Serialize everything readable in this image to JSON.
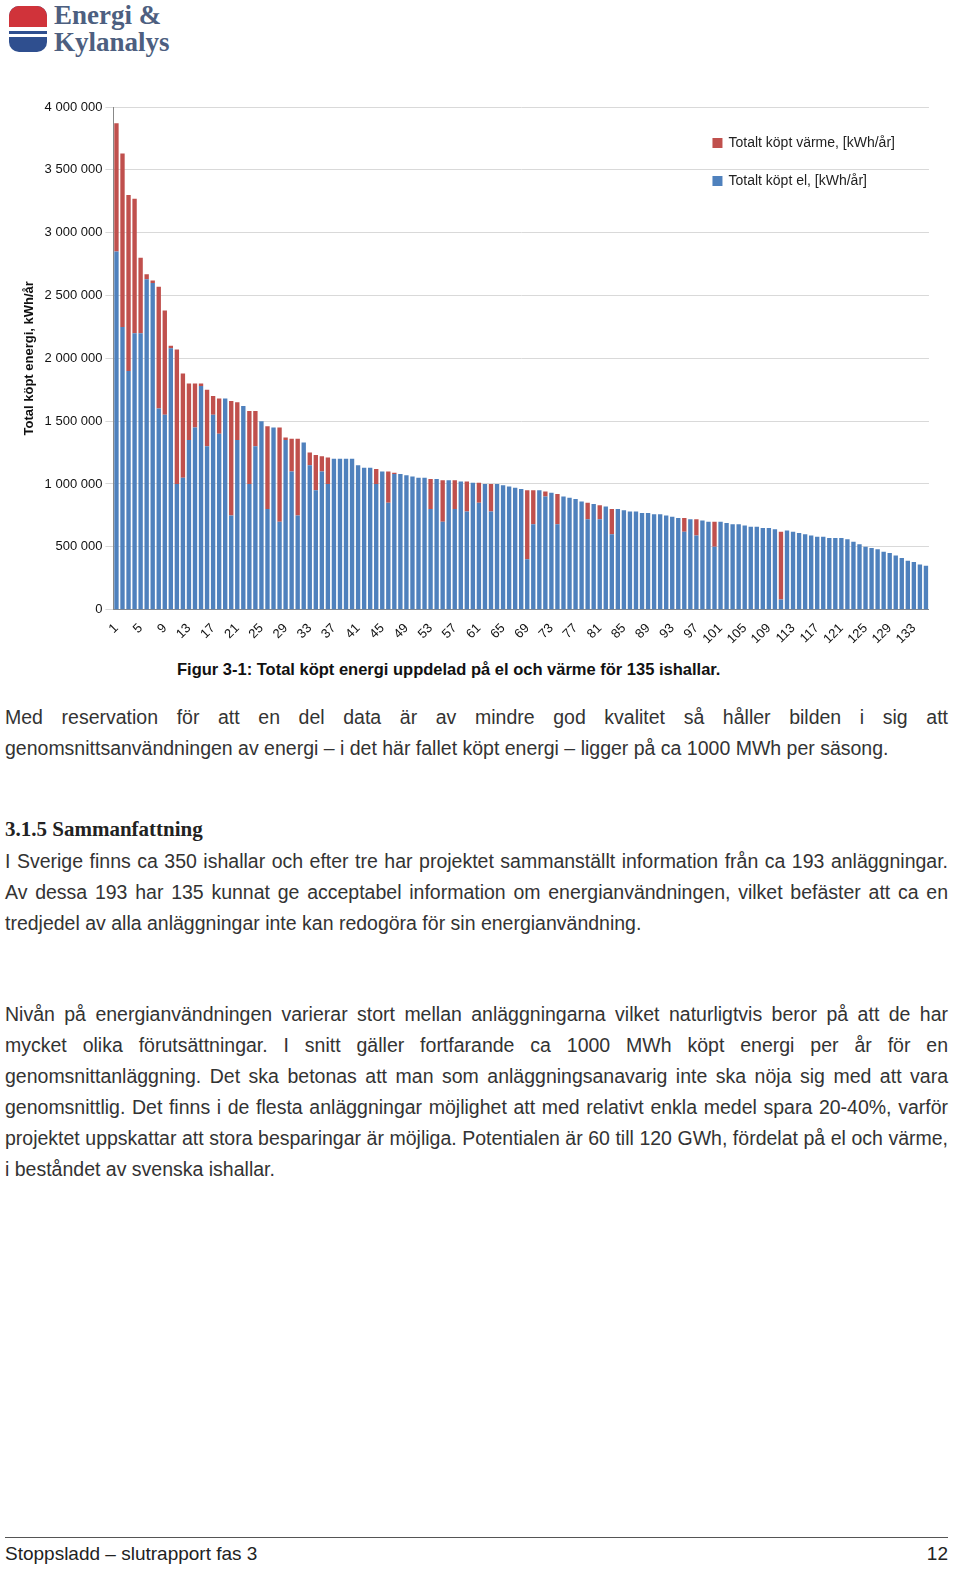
{
  "header": {
    "logo": [
      "Energi &",
      "Kylanalys"
    ]
  },
  "chart_data": {
    "type": "bar",
    "stacked": true,
    "y_label": "Total köpt energi, kWh/år",
    "grid": true,
    "legend": "upper right",
    "categories": [
      "1",
      null,
      null,
      null,
      "5",
      null,
      null,
      null,
      "9",
      null,
      null,
      null,
      "13",
      null,
      null,
      null,
      "17",
      null,
      null,
      null,
      "21",
      null,
      null,
      null,
      "25",
      null,
      null,
      null,
      "29",
      null,
      null,
      null,
      "33",
      null,
      null,
      null,
      "37",
      null,
      null,
      null,
      "41",
      null,
      null,
      null,
      "45",
      null,
      null,
      null,
      "49",
      null,
      null,
      null,
      "53",
      null,
      null,
      null,
      "57",
      null,
      null,
      null,
      "61",
      null,
      null,
      null,
      "65",
      null,
      null,
      null,
      "69",
      null,
      null,
      null,
      "73",
      null,
      null,
      null,
      "77",
      null,
      null,
      null,
      "81",
      null,
      null,
      null,
      "85",
      null,
      null,
      null,
      "89",
      null,
      null,
      null,
      "93",
      null,
      null,
      null,
      "97",
      null,
      null,
      null,
      "101",
      null,
      null,
      null,
      "105",
      null,
      null,
      null,
      "109",
      null,
      null,
      null,
      "113",
      null,
      null,
      null,
      "117",
      null,
      null,
      null,
      "121",
      null,
      null,
      null,
      "125",
      null,
      null,
      null,
      "129",
      null,
      null,
      null,
      "133",
      null,
      null
    ],
    "series": [
      {
        "name": "Totalt köpt el, [kWh/år]",
        "color": "#4f81bd",
        "values": [
          2850000,
          2250000,
          1900000,
          2200000,
          2200000,
          2630000,
          2600000,
          1600000,
          1550000,
          2080000,
          1000000,
          1050000,
          1350000,
          1450000,
          1780000,
          1300000,
          1550000,
          1400000,
          1680000,
          750000,
          1350000,
          1620000,
          1000000,
          1300000,
          1500000,
          800000,
          1450000,
          700000,
          1350000,
          1100000,
          750000,
          1330000,
          1150000,
          950000,
          1100000,
          1000000,
          1200000,
          1200000,
          1200000,
          1200000,
          1150000,
          1130000,
          1130000,
          1000000,
          1100000,
          850000,
          1080000,
          1080000,
          1070000,
          1060000,
          1050000,
          1050000,
          800000,
          1040000,
          700000,
          1030000,
          800000,
          1020000,
          780000,
          1010000,
          850000,
          1000000,
          780000,
          1000000,
          990000,
          980000,
          970000,
          960000,
          400000,
          680000,
          950000,
          900000,
          930000,
          680000,
          900000,
          890000,
          880000,
          860000,
          720000,
          840000,
          720000,
          820000,
          600000,
          800000,
          790000,
          780000,
          780000,
          770000,
          770000,
          760000,
          760000,
          750000,
          740000,
          730000,
          620000,
          720000,
          590000,
          710000,
          700000,
          500000,
          700000,
          690000,
          680000,
          680000,
          670000,
          660000,
          660000,
          650000,
          650000,
          640000,
          80000,
          630000,
          620000,
          610000,
          600000,
          590000,
          580000,
          580000,
          570000,
          570000,
          570000,
          560000,
          540000,
          520000,
          500000,
          490000,
          480000,
          460000,
          450000,
          430000,
          410000,
          390000,
          380000,
          360000,
          350000
        ]
      },
      {
        "name": "Totalt köpt värme, [kWh/år]",
        "color": "#c0504d",
        "values": [
          1020000,
          1380000,
          1400000,
          1070000,
          600000,
          40000,
          20000,
          970000,
          830000,
          20000,
          1070000,
          830000,
          450000,
          350000,
          20000,
          450000,
          150000,
          280000,
          0,
          910000,
          300000,
          0,
          580000,
          280000,
          0,
          660000,
          0,
          750000,
          20000,
          260000,
          610000,
          0,
          100000,
          280000,
          120000,
          210000,
          0,
          0,
          0,
          0,
          0,
          0,
          0,
          120000,
          0,
          250000,
          10000,
          0,
          0,
          0,
          0,
          0,
          240000,
          0,
          330000,
          0,
          230000,
          0,
          240000,
          0,
          160000,
          0,
          220000,
          0,
          0,
          0,
          0,
          0,
          550000,
          270000,
          0,
          40000,
          0,
          240000,
          0,
          0,
          0,
          0,
          130000,
          0,
          110000,
          0,
          200000,
          0,
          0,
          0,
          0,
          0,
          0,
          0,
          0,
          0,
          0,
          0,
          110000,
          0,
          130000,
          0,
          0,
          200000,
          0,
          0,
          0,
          0,
          0,
          0,
          0,
          0,
          0,
          0,
          540000,
          0,
          0,
          0,
          0,
          0,
          0,
          0,
          0,
          0,
          0,
          0,
          0,
          0,
          0,
          0,
          0,
          0,
          0,
          0,
          0,
          0,
          0,
          0,
          0
        ]
      }
    ],
    "ylim": [
      0,
      4000000
    ],
    "yticks": [
      0,
      {
        "value": 500000,
        "label": "500 000"
      },
      {
        "value": 1000000,
        "label": "1 000 000"
      },
      {
        "value": 1500000,
        "label": "1 500 000"
      },
      {
        "value": 2000000,
        "label": "2 000 000"
      },
      {
        "value": 2500000,
        "label": "2 500 000"
      },
      {
        "value": 3000000,
        "label": "3 000 000"
      },
      {
        "value": 3500000,
        "label": "3 500 000"
      },
      {
        "value": 4000000,
        "label": "4 000 000"
      }
    ]
  },
  "caption": "Figur 3-1: Total köpt energi uppdelad på el och värme för 135 ishallar.",
  "paragraph": "Med reservation för att en del data är av mindre god kvalitet så håller bilden i sig att genomsnittsanvändningen av energi – i det här fallet köpt energi – ligger på ca 1000 MWh per säsong.",
  "section": {
    "number": "3.1.5",
    "title": "Sammanfattning",
    "paragraphs": [
      "I Sverige finns ca 350 ishallar och efter tre har projektet sammanställt information från ca 193 anläggningar. Av dessa 193 har 135 kunnat ge acceptabel information om energianvändningen, vilket befäster att ca en tredjedel av alla anläggningar inte kan redogöra för sin energianvändning.",
      "Nivån på energianvändningen varierar stort mellan anläggningarna vilket naturligtvis beror på att de har mycket olika förutsättningar. I snitt gäller fortfarande ca 1000 MWh köpt energi per år för en genomsnittanläggning. Det ska betonas att man som anläggningsanavarig inte ska nöja sig med att vara genomsnittlig. Det finns i de flesta anläggningar möjlighet att med relativt enkla medel spara 20-40%, varför projektet uppskattar att stora besparingar är möjliga. Potentialen är 60 till 120 GWh, fördelat på el och värme, i beståndet av svenska ishallar."
    ]
  },
  "footer": {
    "left": "Stoppsladd – slutrapport fas 3",
    "page": 12
  }
}
